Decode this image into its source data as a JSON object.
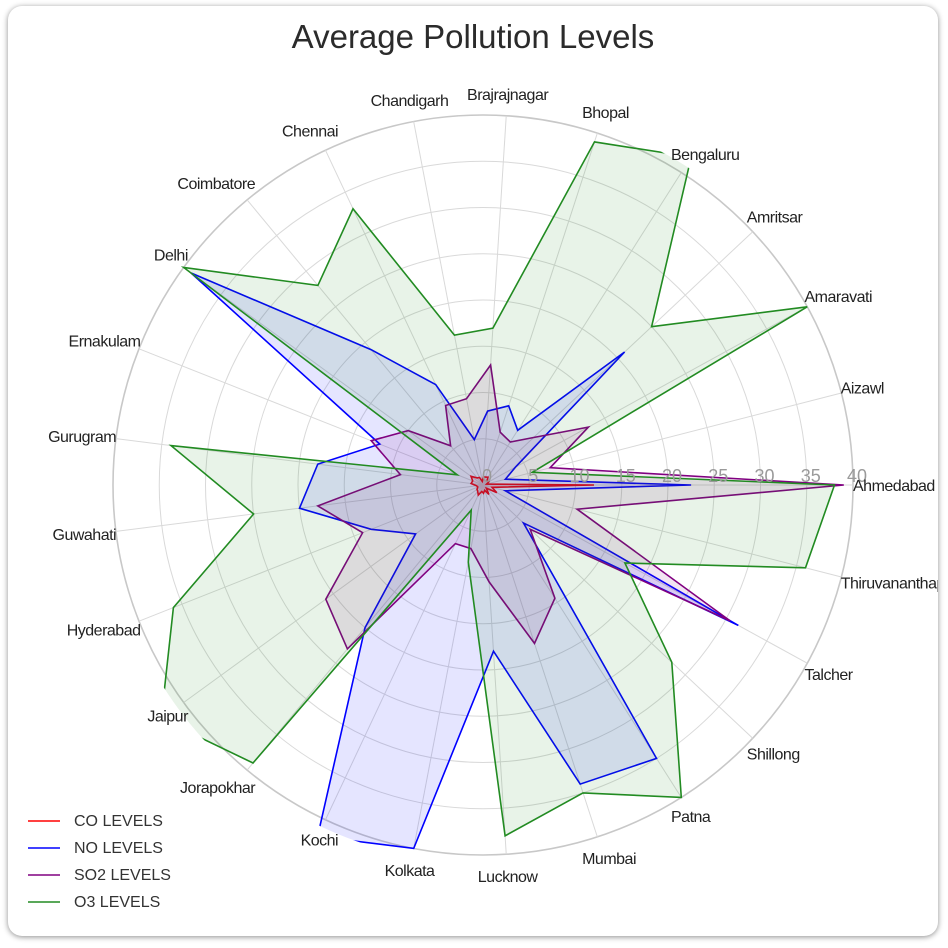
{
  "chart_data": {
    "type": "radar",
    "title": "Average Pollution Levels",
    "rmax": 40,
    "rticks": [
      0,
      5,
      10,
      15,
      20,
      25,
      30,
      35,
      40
    ],
    "categories": [
      "Ahmedabad",
      "Aizawl",
      "Amaravati",
      "Amritsar",
      "Bengaluru",
      "Bhopal",
      "Brajrajnagar",
      "Chandigarh",
      "Chennai",
      "Coimbatore",
      "Delhi",
      "Ernakulam",
      "Gurugram",
      "Guwahati",
      "Hyderabad",
      "Jaipur",
      "Jorapokhar",
      "Kochi",
      "Kolkata",
      "Lucknow",
      "Mumbai",
      "Patna",
      "Shillong",
      "Talcher",
      "Thiruvananthapuram"
    ],
    "series": [
      {
        "name": "CO LEVELS",
        "color": "#ff0000",
        "values": [
          12.0,
          0.4,
          0.7,
          0.6,
          1.0,
          0.9,
          0.9,
          0.4,
          0.9,
          1.0,
          1.6,
          1.2,
          1.3,
          0.7,
          0.6,
          0.8,
          0.9,
          1.2,
          0.7,
          0.9,
          0.6,
          1.2,
          0.5,
          1.7,
          1.0
        ]
      },
      {
        "name": "NO LEVELS",
        "color": "#0000ff",
        "values": [
          22.5,
          2.5,
          4.0,
          21.0,
          7.0,
          9.0,
          8.0,
          5.0,
          12.0,
          19.0,
          39.0,
          12.0,
          18.0,
          20.0,
          13.0,
          9.0,
          20.0,
          42.0,
          40.0,
          18.0,
          34.0,
          35.0,
          6.0,
          31.5,
          2.5
        ]
      },
      {
        "name": "SO2 LEVELS",
        "color": "#800080",
        "values": [
          39.0,
          7.5,
          13.0,
          7.5,
          5.5,
          6.0,
          13.0,
          9.5,
          9.5,
          5.5,
          10.0,
          13.0,
          9.0,
          18.0,
          14.0,
          21.0,
          23.0,
          7.0,
          7.0,
          10.5,
          18.0,
          14.5,
          7.0,
          30.5,
          10.5
        ]
      },
      {
        "name": "O3 LEVELS",
        "color": "#228b22",
        "values": [
          38.0,
          5.5,
          40.0,
          25.0,
          42.0,
          39.0,
          17.0,
          16.5,
          33.0,
          28.0,
          40.0,
          3.0,
          34.0,
          25.0,
          36.0,
          43.0,
          39.0,
          3.0,
          8.5,
          38.0,
          35.0,
          40.0,
          28.0,
          17.5,
          36.0
        ]
      }
    ],
    "grid": true,
    "legend_position": "bottom-left"
  }
}
